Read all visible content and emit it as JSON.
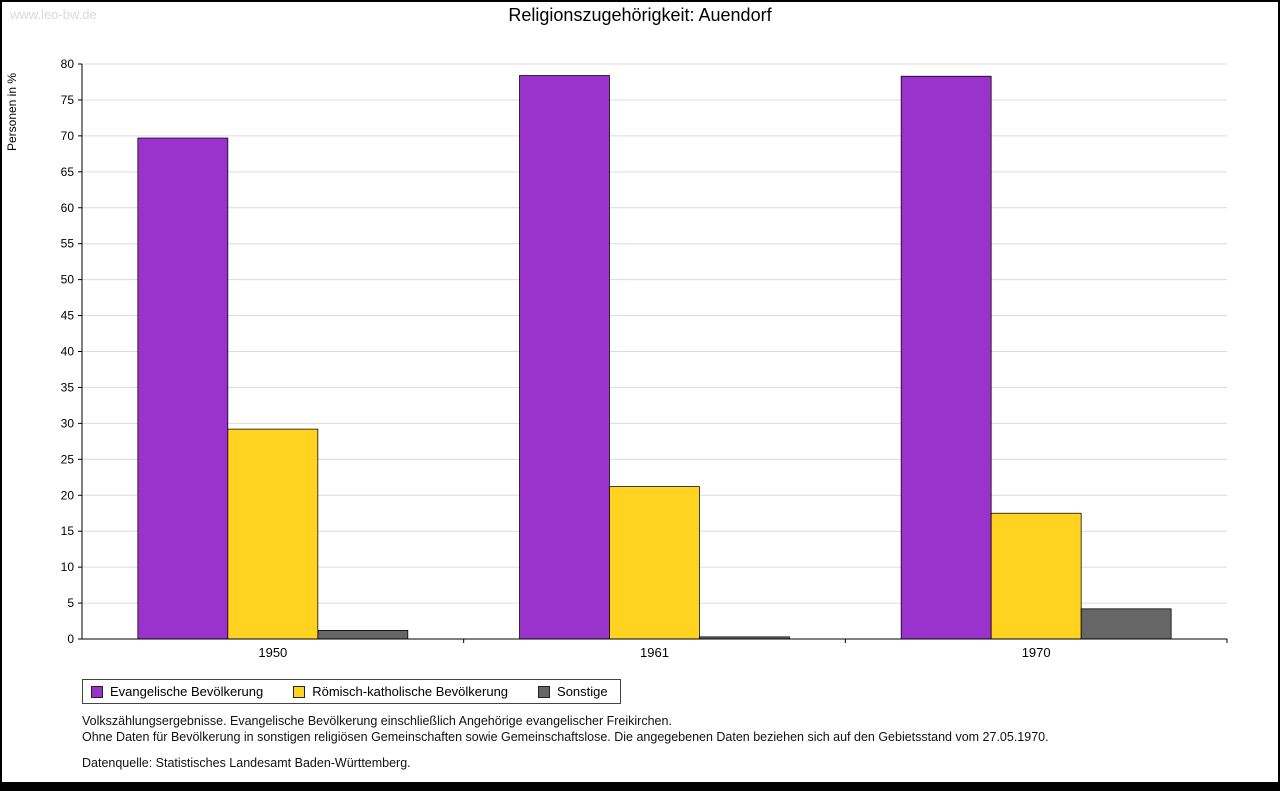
{
  "page": {
    "watermark": "www.leo-bw.de",
    "title": "Religionszugehörigkeit: Auendorf"
  },
  "chart_data": {
    "type": "bar",
    "title": "Religionszugehörigkeit: Auendorf",
    "xlabel": "",
    "ylabel": "Personen in %",
    "ylim": [
      0,
      80
    ],
    "ytick_step": 5,
    "grid": true,
    "legend_position": "bottom",
    "categories": [
      "1950",
      "1961",
      "1970"
    ],
    "series": [
      {
        "name": "Evangelische Bevölkerung",
        "color": "#9933cc",
        "values": [
          69.7,
          78.4,
          78.3
        ]
      },
      {
        "name": "Römisch-katholische Bevölkerung",
        "color": "#ffd320",
        "values": [
          29.2,
          21.2,
          17.5
        ]
      },
      {
        "name": "Sonstige",
        "color": "#666666",
        "values": [
          1.2,
          0.3,
          4.2
        ]
      }
    ]
  },
  "footnotes": {
    "line1": "Volkszählungsergebnisse. Evangelische Bevölkerung einschließlich Angehörige evangelischer Freikirchen.",
    "line2": "Ohne Daten für Bevölkerung in sonstigen religiösen Gemeinschaften sowie Gemeinschaftslose. Die angegebenen Daten beziehen sich auf den Gebietsstand vom 27.05.1970.",
    "source": "Datenquelle: Statistisches Landesamt Baden-Württemberg."
  }
}
